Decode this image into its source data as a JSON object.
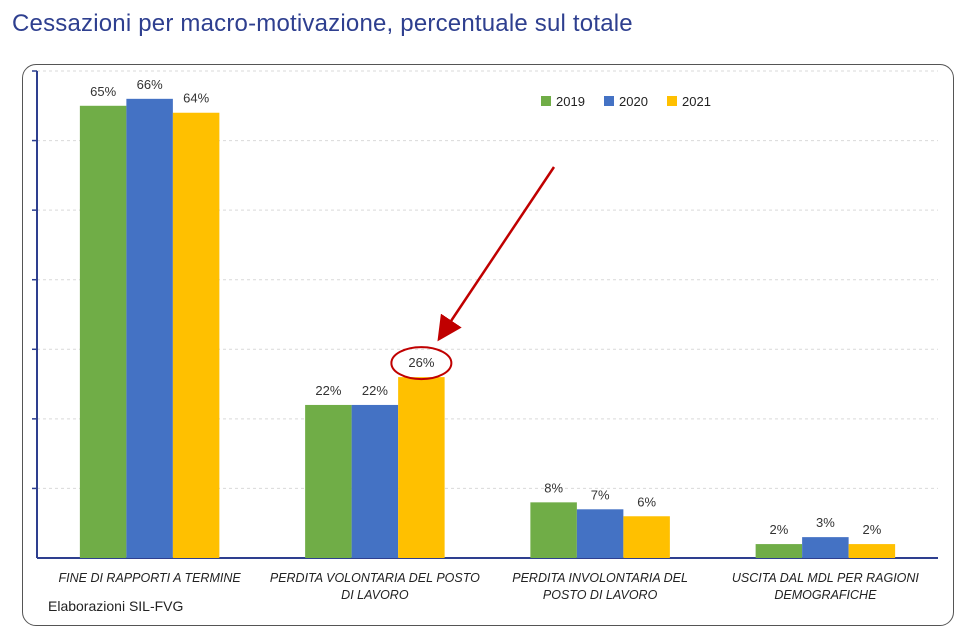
{
  "page": {
    "title": "Cessazioni per macro-motivazione, percentuale sul totale",
    "source": "Elaborazioni SIL-FVG"
  },
  "chart_data": {
    "type": "bar",
    "title": "Cessazioni per macro-motivazione, percentuale sul totale",
    "categories": [
      [
        "FINE DI RAPPORTI A TERMINE"
      ],
      [
        "PERDITA VOLONTARIA DEL POSTO",
        "DI LAVORO"
      ],
      [
        "PERDITA INVOLONTARIA DEL",
        "POSTO DI LAVORO"
      ],
      [
        "USCITA DAL MDL PER RAGIONI",
        "DEMOGRAFICHE"
      ]
    ],
    "series": [
      {
        "name": "2019",
        "color": "#70ad47",
        "values": [
          65,
          22,
          8,
          2
        ],
        "labels": [
          "65%",
          "22%",
          "8%",
          "2%"
        ]
      },
      {
        "name": "2020",
        "color": "#4472c4",
        "values": [
          66,
          22,
          7,
          3
        ],
        "labels": [
          "66%",
          "22%",
          "7%",
          "3%"
        ]
      },
      {
        "name": "2021",
        "color": "#ffc000",
        "values": [
          64,
          26,
          6,
          2
        ],
        "labels": [
          "64%",
          "26%",
          "6%",
          "2%"
        ]
      }
    ],
    "ylim": [
      0,
      70
    ],
    "grid": true,
    "legend": "top-right",
    "highlight": {
      "category_index": 1,
      "series_index": 2,
      "color": "#c00000"
    }
  }
}
